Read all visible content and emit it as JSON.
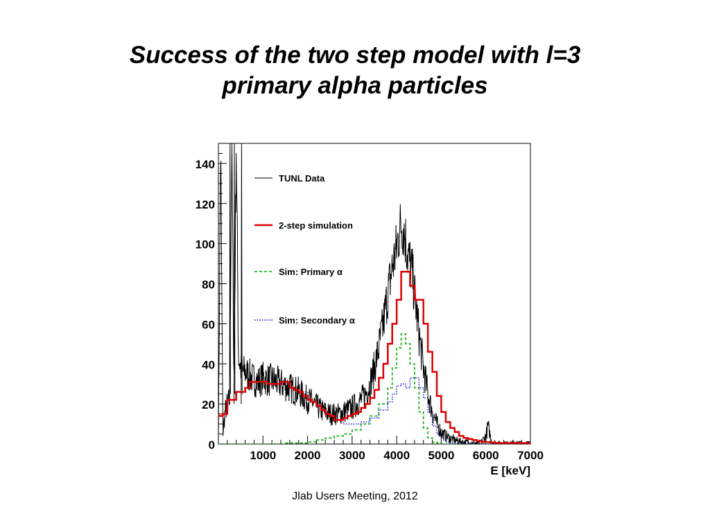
{
  "slide": {
    "title_line1": "Success of the two step model with l=3",
    "title_line2": "primary alpha particles",
    "footer": "Jlab Users Meeting, 2012"
  },
  "chart_data": {
    "type": "line",
    "xlabel": "E [keV]",
    "ylabel": "",
    "xlim": [
      0,
      7000
    ],
    "ylim": [
      0,
      150
    ],
    "x_ticks": [
      1000,
      2000,
      3000,
      4000,
      5000,
      6000,
      7000
    ],
    "y_ticks": [
      0,
      20,
      40,
      60,
      80,
      100,
      120,
      140
    ],
    "grid": false,
    "legend": "top-left",
    "series": [
      {
        "name": "TUNL Data",
        "style": "noisy-line",
        "color": "#000000",
        "x": [
          0,
          50,
          100,
          150,
          200,
          250,
          300,
          350,
          400,
          450,
          500,
          550,
          600,
          650,
          700,
          750,
          800,
          900,
          1000,
          1100,
          1200,
          1300,
          1400,
          1500,
          1600,
          1700,
          1800,
          1900,
          2000,
          2100,
          2200,
          2300,
          2400,
          2500,
          2600,
          2700,
          2800,
          2900,
          3000,
          3100,
          3200,
          3300,
          3400,
          3500,
          3600,
          3700,
          3800,
          3900,
          4000,
          4050,
          4100,
          4150,
          4200,
          4250,
          4300,
          4350,
          4400,
          4500,
          4600,
          4700,
          4800,
          4900,
          5000,
          5100,
          5200,
          5300,
          5400,
          5500,
          5600,
          5700,
          5800,
          5900,
          6000,
          6050,
          6100,
          6150,
          6200,
          6300,
          6500,
          7000
        ],
        "y": [
          0,
          150,
          5,
          16,
          20,
          22,
          150,
          30,
          150,
          44,
          38,
          36,
          36,
          35,
          34,
          33,
          32,
          31,
          33,
          32,
          32,
          31,
          30,
          29,
          28,
          27,
          26,
          24,
          22,
          21,
          19,
          17,
          16,
          15,
          15,
          15,
          16,
          17,
          18,
          20,
          22,
          25,
          30,
          38,
          48,
          60,
          75,
          88,
          98,
          105,
          110,
          108,
          102,
          95,
          90,
          85,
          75,
          55,
          38,
          25,
          16,
          10,
          6,
          4,
          3,
          2,
          1.5,
          1,
          1,
          0.5,
          0.5,
          1,
          4,
          9,
          4,
          1,
          0.5,
          0.5,
          0.5,
          0.5
        ]
      },
      {
        "name": "2-step simulation",
        "style": "step",
        "color": "#dd0000",
        "x": [
          0,
          100,
          200,
          300,
          400,
          500,
          600,
          700,
          800,
          900,
          1000,
          1100,
          1200,
          1300,
          1400,
          1500,
          1600,
          1700,
          1800,
          1900,
          2000,
          2100,
          2200,
          2300,
          2400,
          2500,
          2600,
          2700,
          2800,
          2900,
          3000,
          3100,
          3200,
          3300,
          3400,
          3500,
          3600,
          3700,
          3800,
          3900,
          4000,
          4100,
          4200,
          4300,
          4400,
          4500,
          4600,
          4700,
          4800,
          4900,
          5000,
          5100,
          5200,
          5300,
          5400,
          5500,
          5600,
          5700,
          5800,
          5900,
          6000,
          6100,
          6200,
          6300,
          6400,
          6500,
          6600,
          6700,
          6800,
          6900
        ],
        "y": [
          14,
          15,
          22,
          22,
          26,
          26,
          28,
          31,
          31,
          31,
          31,
          30,
          30,
          30,
          31,
          31,
          28,
          27,
          26,
          24,
          22,
          21,
          19,
          17,
          15,
          14,
          12,
          12,
          13,
          14,
          15,
          16,
          18,
          20,
          23,
          27,
          33,
          40,
          50,
          60,
          72,
          86,
          86,
          79,
          72,
          72,
          60,
          46,
          36,
          24,
          16,
          11,
          8,
          6,
          4,
          3,
          2.5,
          2,
          1.5,
          1,
          1,
          0.8,
          0.6,
          0.5,
          0.5,
          0.5,
          0.5,
          0.5,
          0.5,
          0.5
        ]
      },
      {
        "name": "Sim: Primary α",
        "style": "dashed-step",
        "color": "#00aa00",
        "x": [
          0,
          500,
          1000,
          1500,
          2000,
          2200,
          2400,
          2600,
          2800,
          3000,
          3200,
          3400,
          3600,
          3800,
          3900,
          4000,
          4100,
          4200,
          4300,
          4400,
          4500,
          4600,
          4700,
          4800,
          4900,
          5000,
          5100,
          5200,
          5400,
          5600,
          7000
        ],
        "y": [
          0,
          0,
          0,
          0.5,
          1,
          2,
          3,
          4,
          5,
          7,
          10,
          14,
          20,
          28,
          38,
          48,
          55,
          50,
          40,
          28,
          16,
          8,
          3,
          1,
          0.5,
          0,
          0,
          0,
          0,
          0,
          0
        ]
      },
      {
        "name": "Sim: Secondary α",
        "style": "dotted-step",
        "color": "#0000dd",
        "x": [
          0,
          100,
          200,
          300,
          400,
          500,
          600,
          700,
          800,
          900,
          1000,
          1200,
          1400,
          1600,
          1800,
          2000,
          2200,
          2400,
          2600,
          2800,
          3000,
          3200,
          3400,
          3600,
          3800,
          3900,
          4000,
          4100,
          4200,
          4300,
          4400,
          4500,
          4600,
          4700,
          4800,
          4900,
          5000,
          5100,
          5200,
          5400,
          5600,
          5800,
          6000,
          7000
        ],
        "y": [
          14,
          15,
          22,
          22,
          26,
          26,
          28,
          31,
          31,
          31,
          31,
          30,
          30,
          28,
          26,
          22,
          19,
          15,
          12,
          10,
          10,
          11,
          13,
          17,
          21,
          25,
          29,
          30,
          28,
          33,
          33,
          28,
          23,
          16,
          9,
          5,
          3,
          1,
          0.5,
          0,
          0,
          0,
          0,
          0
        ]
      }
    ],
    "legend_entries": [
      {
        "label": "TUNL Data",
        "color": "#000000",
        "style": "solid-thin"
      },
      {
        "label": "2-step simulation",
        "color": "#dd0000",
        "style": "solid-thick"
      },
      {
        "label": "Sim: Primary α",
        "color": "#00aa00",
        "style": "dashed"
      },
      {
        "label": "Sim: Secondary α",
        "color": "#0000dd",
        "style": "dotted"
      }
    ]
  }
}
